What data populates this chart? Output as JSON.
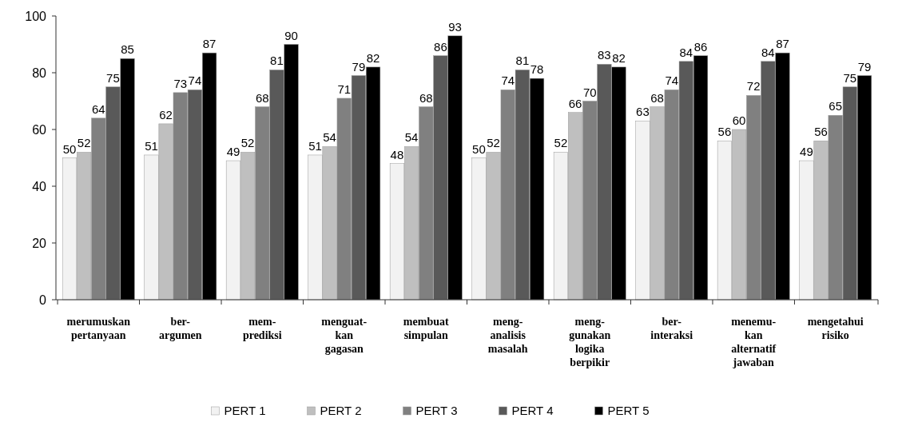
{
  "chart_data": {
    "type": "bar",
    "categories": [
      "merumuskan\npertanyaan",
      "ber-\nargumen",
      "mem-\nprediksi",
      "menguat-\nkan\ngagasan",
      "membuat\nsimpulan",
      "meng-\nanalisis\nmasalah",
      "meng-\ngunakan\nlogika\nberpikir",
      "ber-\ninteraksi",
      "menemu-\nkan\nalternatif\njawaban",
      "mengetahui\nrisiko"
    ],
    "series": [
      {
        "name": "PERT 1",
        "color": "#f2f2f2",
        "values": [
          50,
          51,
          49,
          51,
          48,
          50,
          52,
          63,
          56,
          49
        ]
      },
      {
        "name": "PERT 2",
        "color": "#bfbfbf",
        "values": [
          52,
          62,
          52,
          54,
          54,
          52,
          66,
          68,
          60,
          56
        ]
      },
      {
        "name": "PERT 3",
        "color": "#808080",
        "values": [
          64,
          73,
          68,
          71,
          68,
          74,
          70,
          74,
          72,
          65
        ]
      },
      {
        "name": "PERT 4",
        "color": "#595959",
        "values": [
          75,
          74,
          81,
          79,
          86,
          81,
          83,
          84,
          84,
          75
        ]
      },
      {
        "name": "PERT 5",
        "color": "#000000",
        "values": [
          85,
          87,
          90,
          82,
          93,
          78,
          82,
          86,
          87,
          79
        ]
      }
    ],
    "ylim": [
      0,
      100
    ],
    "yticks": [
      0,
      20,
      40,
      60,
      80,
      100
    ],
    "grid": false,
    "legend": "bottom",
    "data_labels": true
  }
}
